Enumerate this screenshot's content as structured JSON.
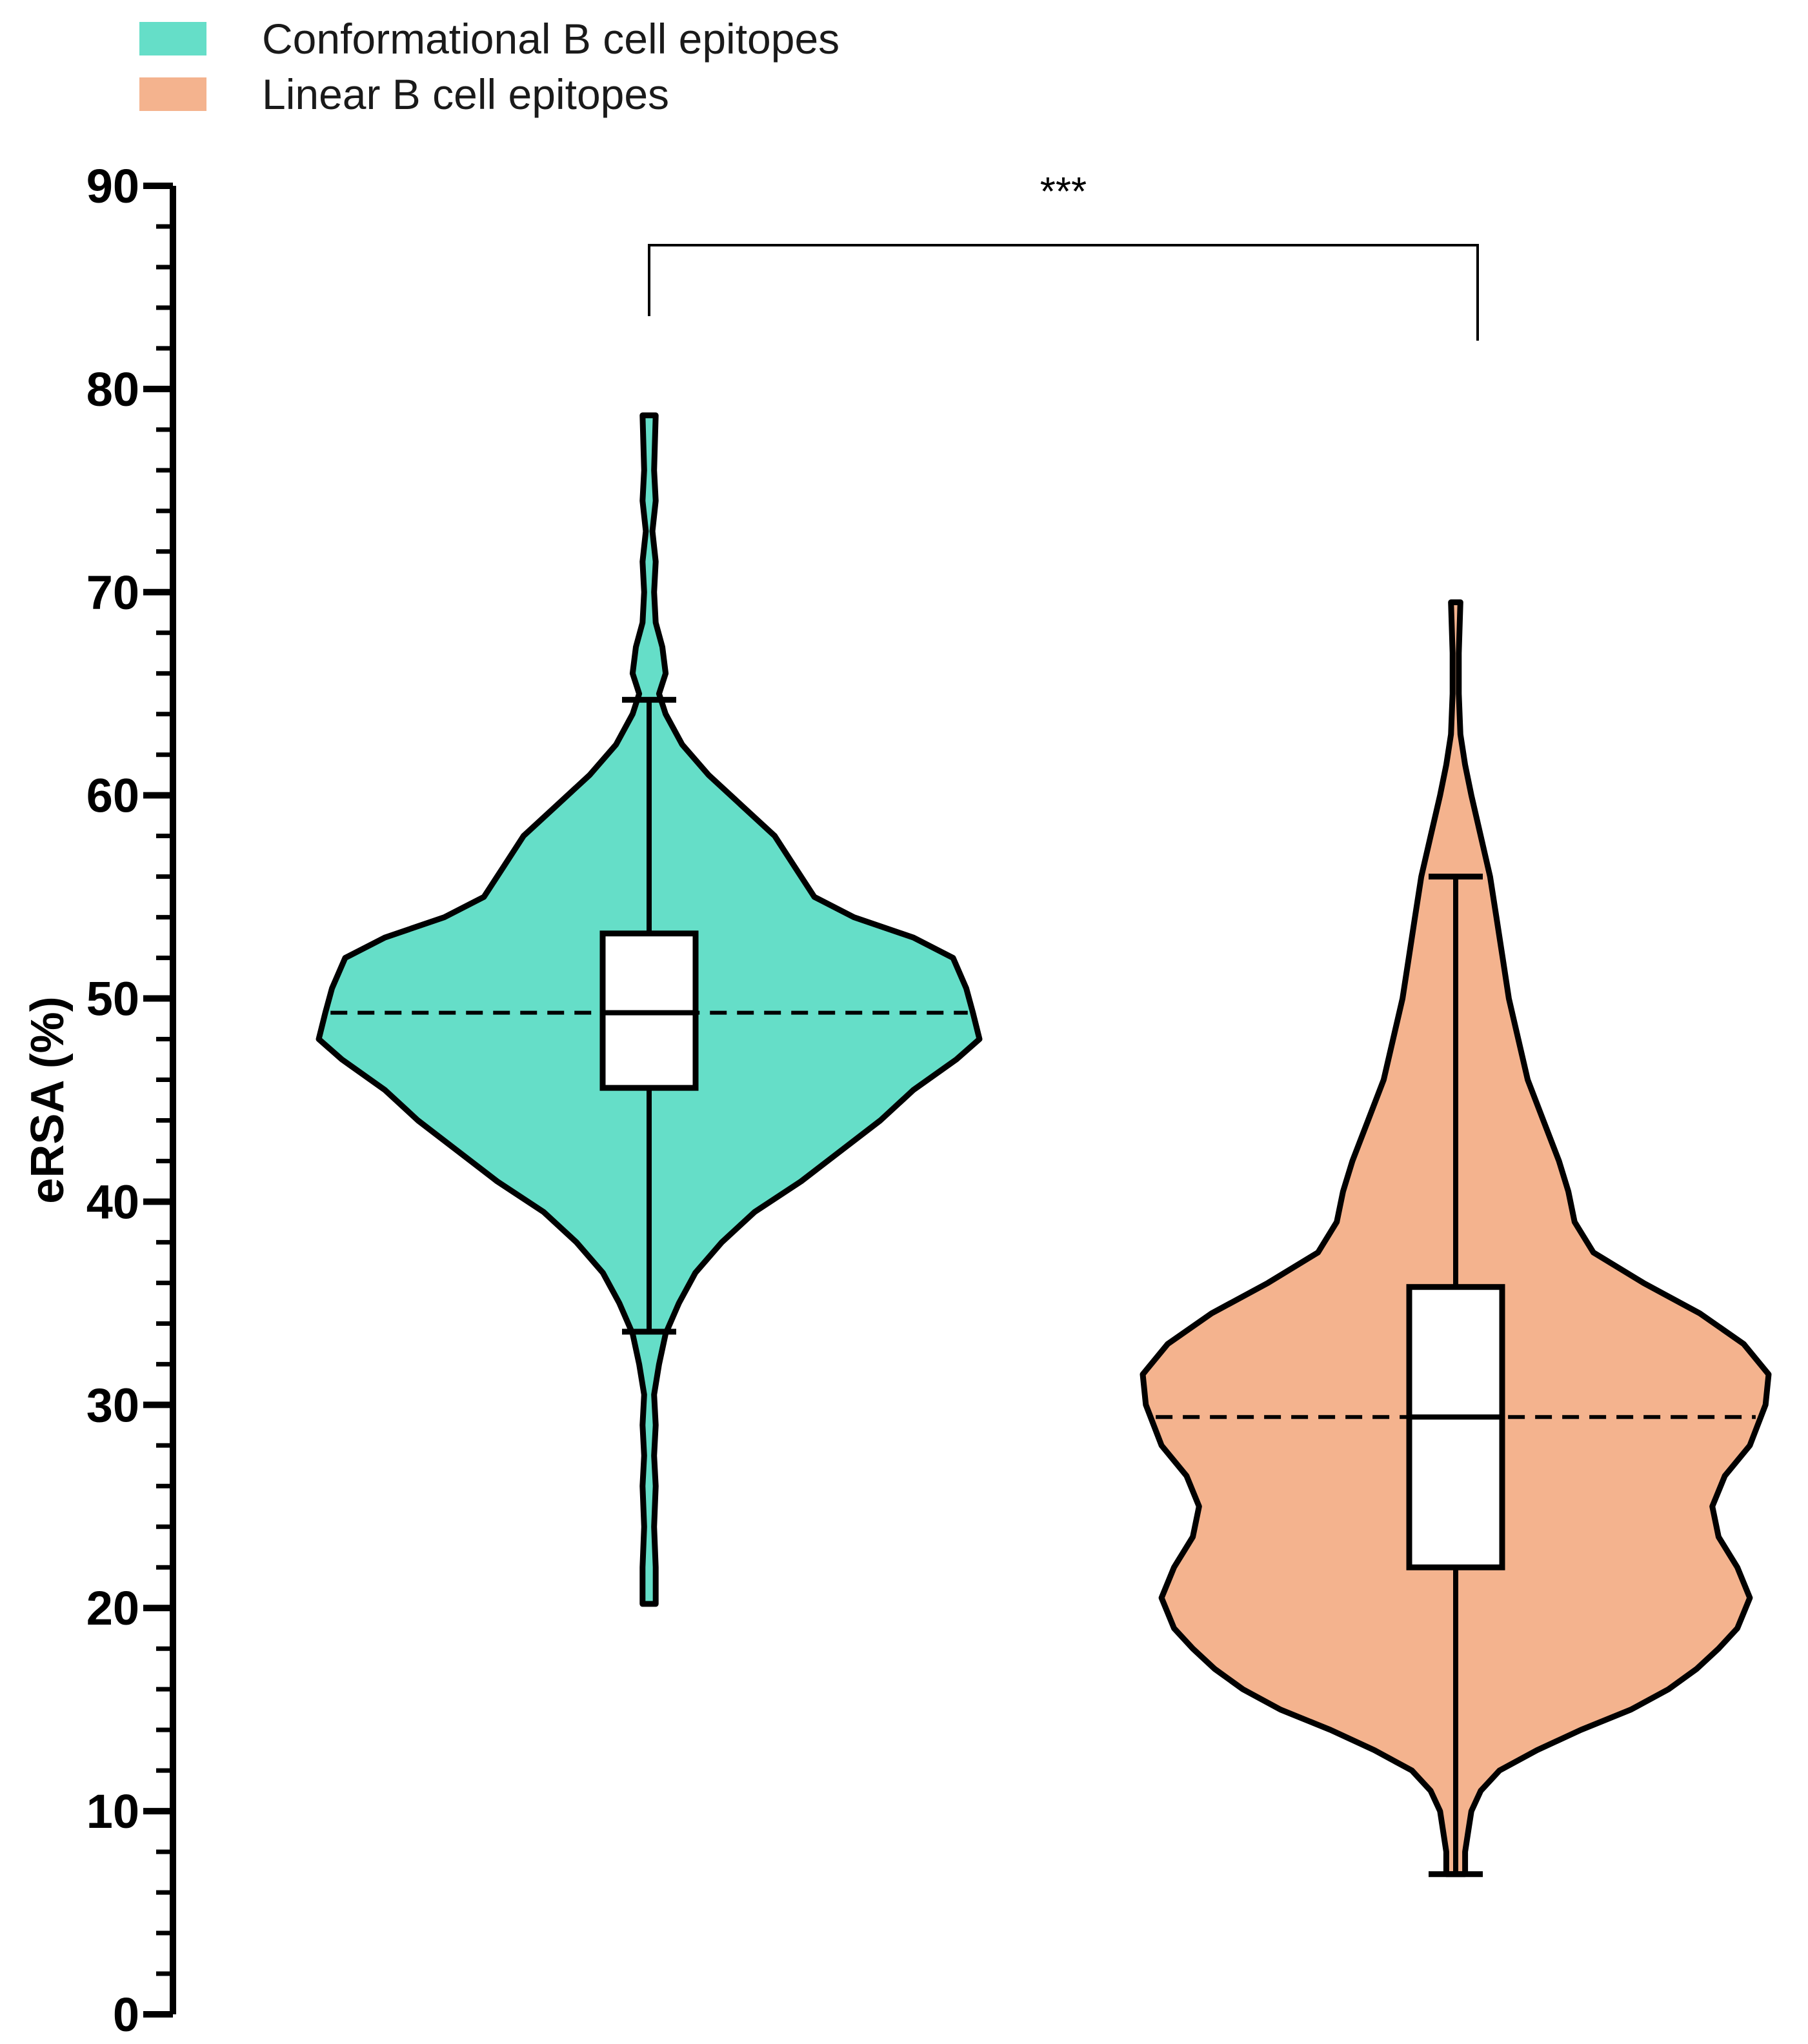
{
  "chart_data": {
    "type": "violin",
    "ylabel": "eRSA (%)",
    "ylim": [
      0,
      90
    ],
    "y_ticks": [
      0,
      10,
      20,
      30,
      40,
      50,
      60,
      70,
      80,
      90
    ],
    "y_minor_step": 2,
    "grid": false,
    "legend_position": "top-left",
    "series": [
      {
        "name": "Conformational B cell epitopes",
        "color": "#65dec8",
        "min": 20.2,
        "whisker_low": 33.6,
        "q1": 45.6,
        "median": 49.3,
        "q3": 53.2,
        "whisker_high": 64.7,
        "max": 78.7,
        "density": [
          [
            20.2,
            0.02
          ],
          [
            22.0,
            0.02
          ],
          [
            24.0,
            0.015
          ],
          [
            26.0,
            0.02
          ],
          [
            27.5,
            0.015
          ],
          [
            29.0,
            0.02
          ],
          [
            30.5,
            0.015
          ],
          [
            32.0,
            0.03
          ],
          [
            33.5,
            0.05
          ],
          [
            35.0,
            0.09
          ],
          [
            36.5,
            0.14
          ],
          [
            38.0,
            0.22
          ],
          [
            39.5,
            0.32
          ],
          [
            41.0,
            0.46
          ],
          [
            42.5,
            0.58
          ],
          [
            44.0,
            0.7
          ],
          [
            45.5,
            0.8
          ],
          [
            47.0,
            0.93
          ],
          [
            48.0,
            1.0
          ],
          [
            49.3,
            0.98
          ],
          [
            50.5,
            0.96
          ],
          [
            52.0,
            0.92
          ],
          [
            53.0,
            0.8
          ],
          [
            54.0,
            0.62
          ],
          [
            55.0,
            0.5
          ],
          [
            56.5,
            0.44
          ],
          [
            58.0,
            0.38
          ],
          [
            59.5,
            0.28
          ],
          [
            61.0,
            0.18
          ],
          [
            62.5,
            0.1
          ],
          [
            64.0,
            0.05
          ],
          [
            65.0,
            0.03
          ],
          [
            66.0,
            0.05
          ],
          [
            67.3,
            0.04
          ],
          [
            68.5,
            0.02
          ],
          [
            70.0,
            0.015
          ],
          [
            71.5,
            0.02
          ],
          [
            73.0,
            0.01
          ],
          [
            74.5,
            0.02
          ],
          [
            76.0,
            0.015
          ],
          [
            78.7,
            0.02
          ]
        ]
      },
      {
        "name": "Linear B cell epitopes",
        "color": "#f4b38e",
        "min": 6.9,
        "whisker_low": 6.9,
        "q1": 22.0,
        "median": 29.4,
        "q3": 35.8,
        "whisker_high": 56.0,
        "max": 69.5,
        "density": [
          [
            6.9,
            0.03
          ],
          [
            8.0,
            0.03
          ],
          [
            9.0,
            0.04
          ],
          [
            10.0,
            0.05
          ],
          [
            11.0,
            0.08
          ],
          [
            12.0,
            0.14
          ],
          [
            13.0,
            0.26
          ],
          [
            14.0,
            0.4
          ],
          [
            15.0,
            0.56
          ],
          [
            16.0,
            0.68
          ],
          [
            17.0,
            0.77
          ],
          [
            18.0,
            0.84
          ],
          [
            19.0,
            0.9
          ],
          [
            20.5,
            0.94
          ],
          [
            22.0,
            0.9
          ],
          [
            23.5,
            0.84
          ],
          [
            25.0,
            0.82
          ],
          [
            26.5,
            0.86
          ],
          [
            28.0,
            0.94
          ],
          [
            30.0,
            0.99
          ],
          [
            31.5,
            1.0
          ],
          [
            33.0,
            0.92
          ],
          [
            34.5,
            0.78
          ],
          [
            36.0,
            0.6
          ],
          [
            37.5,
            0.44
          ],
          [
            39.0,
            0.38
          ],
          [
            40.5,
            0.36
          ],
          [
            42.0,
            0.33
          ],
          [
            44.0,
            0.28
          ],
          [
            46.0,
            0.23
          ],
          [
            48.0,
            0.2
          ],
          [
            50.0,
            0.17
          ],
          [
            52.0,
            0.15
          ],
          [
            54.0,
            0.13
          ],
          [
            56.0,
            0.11
          ],
          [
            58.0,
            0.08
          ],
          [
            60.0,
            0.05
          ],
          [
            61.5,
            0.03
          ],
          [
            63.0,
            0.015
          ],
          [
            65.0,
            0.01
          ],
          [
            67.0,
            0.01
          ],
          [
            69.5,
            0.015
          ]
        ]
      }
    ],
    "annotations": [
      {
        "text": "***",
        "between": [
          "Conformational B cell epitopes",
          "Linear B cell epitopes"
        ]
      }
    ]
  }
}
